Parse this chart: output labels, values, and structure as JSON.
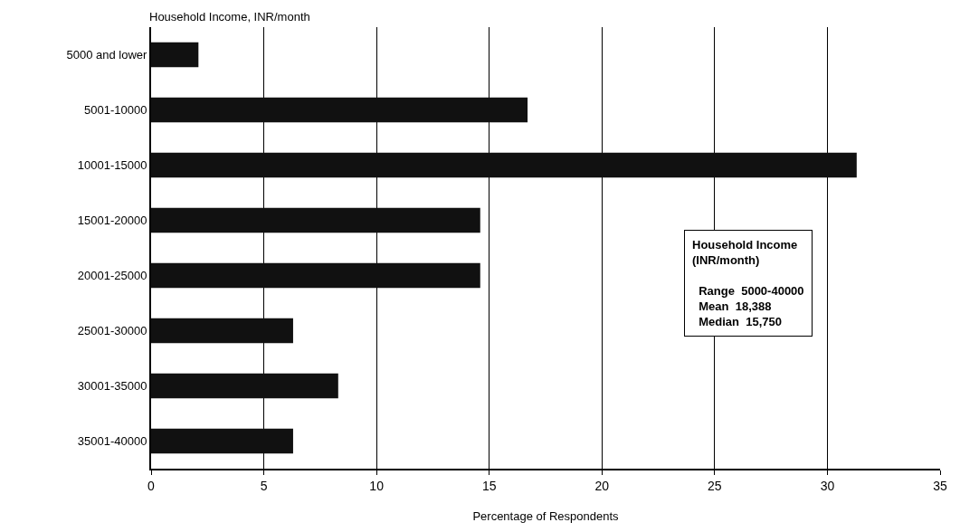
{
  "chart_data": {
    "type": "bar",
    "orientation": "horizontal",
    "ylabel": "Household Income, INR/month",
    "xlabel": "Percentage of Respondents",
    "categories": [
      "5000 and lower",
      "5001-10000",
      "10001-15000",
      "15001-20000",
      "20001-25000",
      "25001-30000",
      "30001-35000",
      "35001-40000"
    ],
    "values": [
      2.1,
      16.7,
      31.3,
      14.6,
      14.6,
      6.3,
      8.3,
      6.3
    ],
    "color": "#111111",
    "xlim": [
      0,
      35
    ],
    "xticks": [
      0,
      5,
      10,
      15,
      20,
      25,
      30,
      35
    ],
    "grid": "x",
    "annotations": [
      "Household Income\n(INR/month)\n\n  Range  5000-40000\n  Mean  18,388\n  Median  15,750"
    ]
  }
}
